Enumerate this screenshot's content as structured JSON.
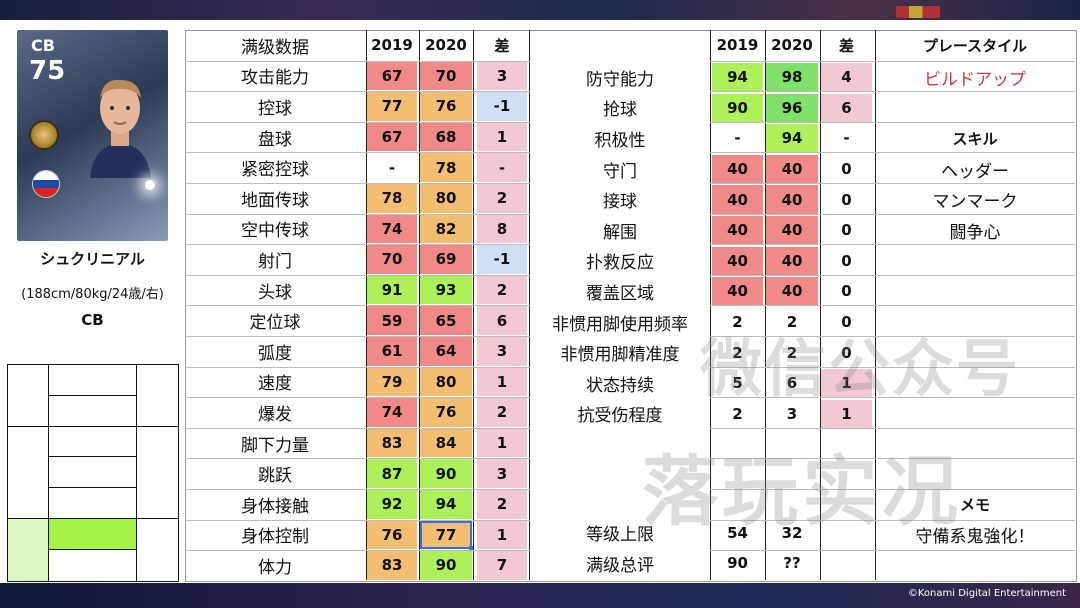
{
  "player": {
    "card_position": "CB",
    "card_rating": "75",
    "name": "シュクリニアル",
    "info": "(188cm/80kg/24歳/右)",
    "position": "CB"
  },
  "headers": {
    "left_title": "满级数据",
    "y2019": "2019",
    "y2020": "2020",
    "diff": "差",
    "playstyle_title": "プレースタイル",
    "playstyle_value": "ビルドアップ",
    "skill_title": "スキル",
    "skills": [
      "ヘッダー",
      "マンマーク",
      "闘争心"
    ],
    "memo_title": "メモ",
    "memo_value": "守備系鬼強化！"
  },
  "left_stats": [
    {
      "label": "攻击能力",
      "v2019": "67",
      "v2020": "70",
      "diff": "3"
    },
    {
      "label": "控球",
      "v2019": "77",
      "v2020": "76",
      "diff": "-1"
    },
    {
      "label": "盘球",
      "v2019": "67",
      "v2020": "68",
      "diff": "1"
    },
    {
      "label": "紧密控球",
      "v2019": "-",
      "v2020": "78",
      "diff": "-"
    },
    {
      "label": "地面传球",
      "v2019": "78",
      "v2020": "80",
      "diff": "2"
    },
    {
      "label": "空中传球",
      "v2019": "74",
      "v2020": "82",
      "diff": "8"
    },
    {
      "label": "射门",
      "v2019": "70",
      "v2020": "69",
      "diff": "-1"
    },
    {
      "label": "头球",
      "v2019": "91",
      "v2020": "93",
      "diff": "2"
    },
    {
      "label": "定位球",
      "v2019": "59",
      "v2020": "65",
      "diff": "6"
    },
    {
      "label": "弧度",
      "v2019": "61",
      "v2020": "64",
      "diff": "3"
    },
    {
      "label": "速度",
      "v2019": "79",
      "v2020": "80",
      "diff": "1"
    },
    {
      "label": "爆发",
      "v2019": "74",
      "v2020": "76",
      "diff": "2"
    },
    {
      "label": "脚下力量",
      "v2019": "83",
      "v2020": "84",
      "diff": "1"
    },
    {
      "label": "跳跃",
      "v2019": "87",
      "v2020": "90",
      "diff": "3"
    },
    {
      "label": "身体接触",
      "v2019": "92",
      "v2020": "94",
      "diff": "2"
    },
    {
      "label": "身体控制",
      "v2019": "76",
      "v2020": "77",
      "diff": "1"
    },
    {
      "label": "体力",
      "v2019": "83",
      "v2020": "90",
      "diff": "7"
    }
  ],
  "right_stats": [
    {
      "label": "防守能力",
      "v2019": "94",
      "v2020": "98",
      "diff": "4"
    },
    {
      "label": "抢球",
      "v2019": "90",
      "v2020": "96",
      "diff": "6"
    },
    {
      "label": "积极性",
      "v2019": "-",
      "v2020": "94",
      "diff": "-"
    },
    {
      "label": "守门",
      "v2019": "40",
      "v2020": "40",
      "diff": "0"
    },
    {
      "label": "接球",
      "v2019": "40",
      "v2020": "40",
      "diff": "0"
    },
    {
      "label": "解围",
      "v2019": "40",
      "v2020": "40",
      "diff": "0"
    },
    {
      "label": "扑救反应",
      "v2019": "40",
      "v2020": "40",
      "diff": "0"
    },
    {
      "label": "覆盖区域",
      "v2019": "40",
      "v2020": "40",
      "diff": "0"
    },
    {
      "label": "非惯用脚使用频率",
      "v2019": "2",
      "v2020": "2",
      "diff": "0"
    },
    {
      "label": "非惯用脚精准度",
      "v2019": "2",
      "v2020": "2",
      "diff": "0"
    },
    {
      "label": "状态持续",
      "v2019": "5",
      "v2020": "6",
      "diff": "1"
    },
    {
      "label": "抗受伤程度",
      "v2019": "2",
      "v2020": "3",
      "diff": "1"
    }
  ],
  "summary": [
    {
      "label": "等级上限",
      "v2019": "54",
      "v2020": "32"
    },
    {
      "label": "满级总评",
      "v2019": "90",
      "v2020": "??"
    }
  ],
  "watermark": {
    "line1": "微信公众号",
    "line2": "落玩实况"
  },
  "copyright": "©Konami Digital Entertainment",
  "colors": {
    "red": "#f08a88",
    "orange": "#f3bd72",
    "green": "#aef05a",
    "green_strong": "#7fe06a",
    "diff_pink": "#f2c8d2",
    "diff_blue": "#cfe0f5",
    "playstyle_red": "#d0364a"
  }
}
